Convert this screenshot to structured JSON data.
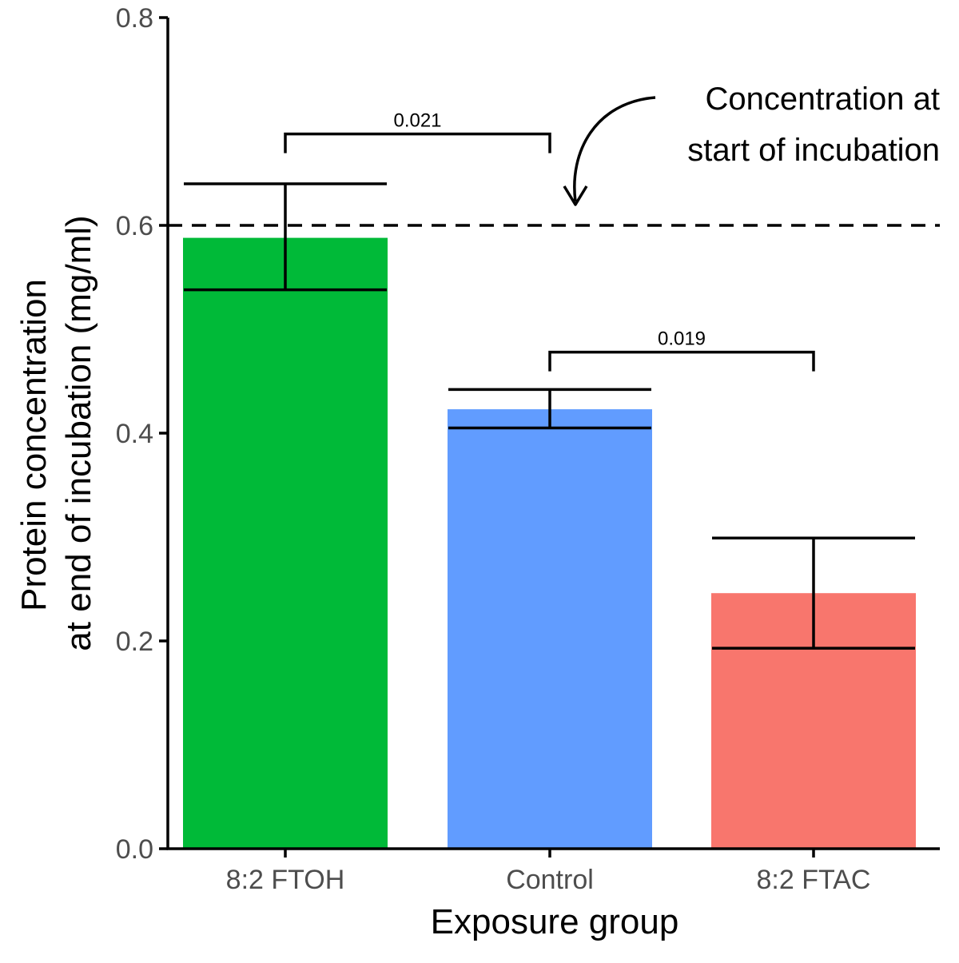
{
  "chart_data": {
    "type": "bar",
    "categories": [
      "8:2 FTOH",
      "Control",
      "8:2 FTAC"
    ],
    "values": [
      0.588,
      0.423,
      0.246
    ],
    "error_bars": [
      {
        "low": 0.538,
        "high": 0.64
      },
      {
        "low": 0.405,
        "high": 0.442
      },
      {
        "low": 0.193,
        "high": 0.299
      }
    ],
    "colors": [
      "#00BA38",
      "#619CFF",
      "#F8766D"
    ],
    "xlabel": "Exposure group",
    "ylabel_line1": "Protein concentration",
    "ylabel_line2": "at end of incubation (mg/ml)",
    "ylim": [
      0,
      0.8
    ],
    "yticks": [
      0.0,
      0.2,
      0.4,
      0.6,
      0.8
    ],
    "ytick_labels": [
      "0.0",
      "0.2",
      "0.4",
      "0.6",
      "0.8"
    ],
    "reference_line": {
      "value": 0.6,
      "style": "dashed"
    },
    "annotation": {
      "line1": "Concentration at",
      "line2": "start of incubation"
    },
    "comparisons": [
      {
        "from": "8:2 FTOH",
        "to": "Control",
        "label": "0.021",
        "y": 0.688
      },
      {
        "from": "Control",
        "to": "8:2 FTAC",
        "label": "0.019",
        "y": 0.478
      }
    ],
    "grid": false,
    "legend": "none"
  }
}
